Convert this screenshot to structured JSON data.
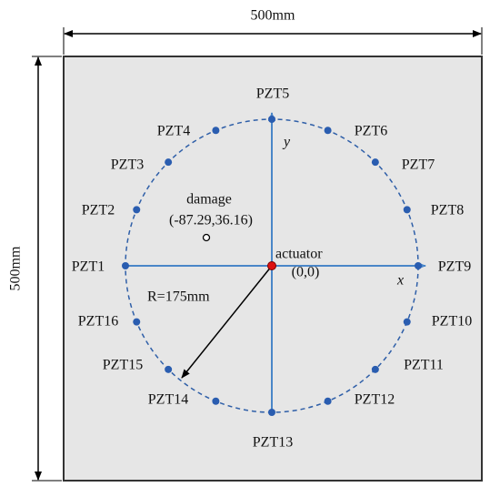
{
  "dimensions": {
    "width": "500mm",
    "height": "500mm"
  },
  "sensors": [
    "PZT1",
    "PZT2",
    "PZT3",
    "PZT4",
    "PZT5",
    "PZT6",
    "PZT7",
    "PZT8",
    "PZT9",
    "PZT10",
    "PZT11",
    "PZT12",
    "PZT13",
    "PZT14",
    "PZT15",
    "PZT16"
  ],
  "damage": {
    "label": "damage",
    "coordinates": "(-87.29,36.16)"
  },
  "actuator": {
    "label": "actuator",
    "coordinates": "(0,0)"
  },
  "radius_label": "R=175mm",
  "axes": {
    "x": "x",
    "y": "y"
  }
}
